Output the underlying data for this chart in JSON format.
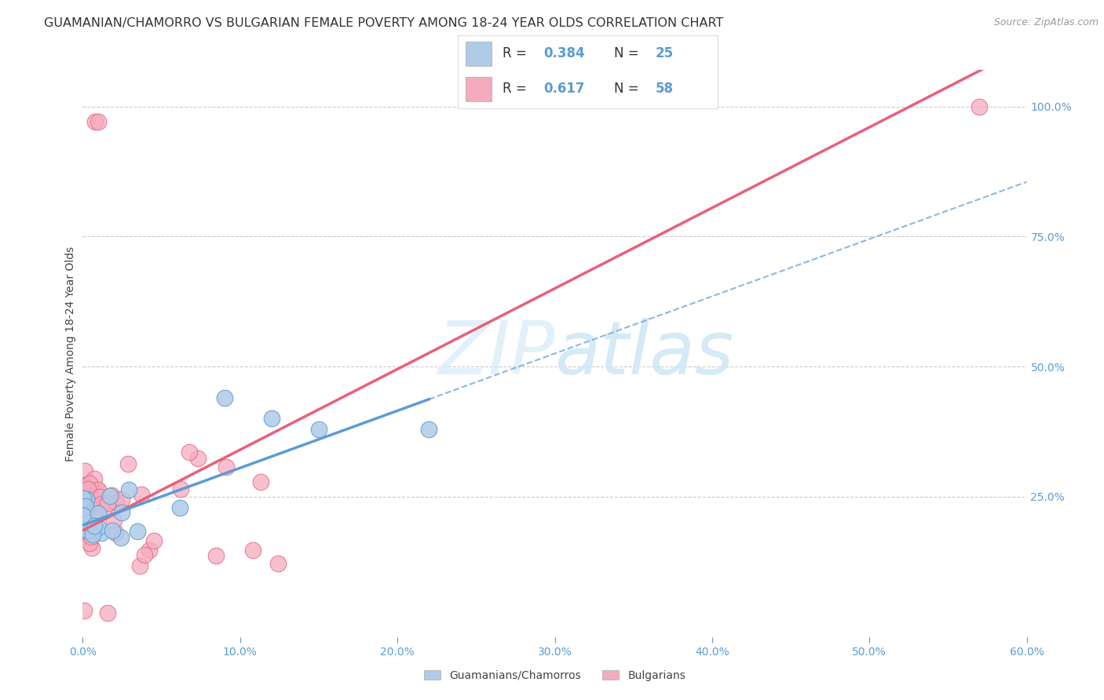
{
  "title": "GUAMANIAN/CHAMORRO VS BULGARIAN FEMALE POVERTY AMONG 18-24 YEAR OLDS CORRELATION CHART",
  "source": "Source: ZipAtlas.com",
  "ylabel": "Female Poverty Among 18-24 Year Olds",
  "xlim": [
    0.0,
    0.6
  ],
  "ylim": [
    -0.02,
    1.07
  ],
  "R_guam": 0.384,
  "N_guam": 25,
  "R_bulg": 0.617,
  "N_bulg": 58,
  "color_guam": "#aecce8",
  "color_bulg": "#f5abbe",
  "line_color_guam": "#5b9bd5",
  "line_color_bulg": "#e8607a",
  "text_color_blue": "#5b9bd5",
  "background_color": "#ffffff",
  "grid_color": "#cccccc",
  "watermark_color": "#d0e8f5",
  "guam_slope": 1.1,
  "guam_intercept": 0.195,
  "bulg_slope": 1.55,
  "bulg_intercept": 0.185,
  "guam_line_xmax": 0.22,
  "title_fontsize": 11.5,
  "tick_fontsize": 10,
  "ylabel_fontsize": 10
}
